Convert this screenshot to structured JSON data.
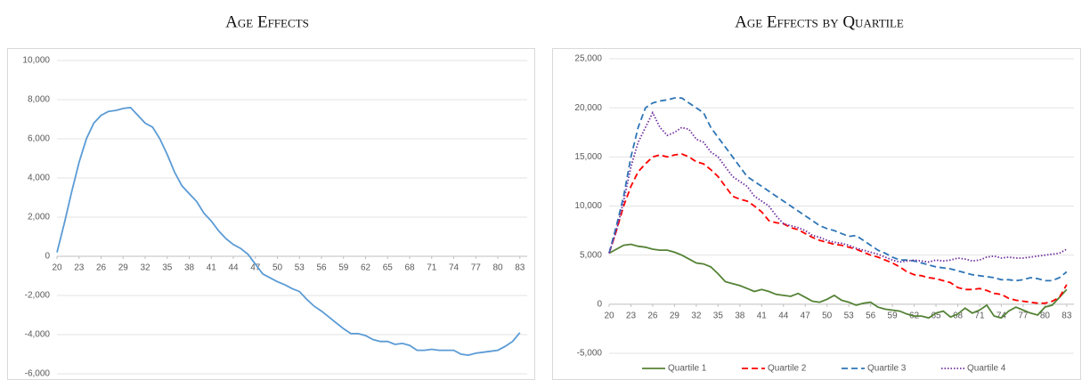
{
  "chart_data": [
    {
      "type": "line",
      "title": "Age Effects",
      "color": "#5b9bd5",
      "style": "solid",
      "x": [
        20,
        21,
        22,
        23,
        24,
        25,
        26,
        27,
        28,
        29,
        30,
        31,
        32,
        33,
        34,
        35,
        36,
        37,
        38,
        39,
        40,
        41,
        42,
        43,
        44,
        45,
        46,
        47,
        48,
        49,
        50,
        51,
        52,
        53,
        54,
        55,
        56,
        57,
        58,
        59,
        60,
        61,
        62,
        63,
        64,
        65,
        66,
        67,
        68,
        69,
        70,
        71,
        72,
        73,
        74,
        75,
        76,
        77,
        78,
        79,
        80,
        81,
        82,
        83
      ],
      "values": [
        200,
        1700,
        3300,
        4800,
        6000,
        6800,
        7200,
        7400,
        7450,
        7550,
        7600,
        7200,
        6800,
        6600,
        6000,
        5200,
        4300,
        3600,
        3200,
        2800,
        2200,
        1800,
        1300,
        900,
        600,
        400,
        100,
        -400,
        -900,
        -1100,
        -1300,
        -1450,
        -1650,
        -1800,
        -2200,
        -2550,
        -2800,
        -3100,
        -3400,
        -3700,
        -3950,
        -3950,
        -4050,
        -4250,
        -4350,
        -4350,
        -4500,
        -4450,
        -4550,
        -4800,
        -4800,
        -4750,
        -4800,
        -4800,
        -4800,
        -5000,
        -5050,
        -4950,
        -4900,
        -4850,
        -4800,
        -4600,
        -4350,
        -3900
      ],
      "xlim": [
        20,
        84
      ],
      "xticks": [
        20,
        23,
        26,
        29,
        32,
        35,
        38,
        41,
        44,
        47,
        50,
        53,
        56,
        59,
        62,
        65,
        68,
        71,
        74,
        77,
        80,
        83
      ],
      "ylim": [
        -6000,
        10000
      ],
      "yticks": [
        {
          "value": -6000,
          "label": "-6,000"
        },
        {
          "value": -4000,
          "label": "-4,000"
        },
        {
          "value": -2000,
          "label": "-2,000"
        },
        0,
        {
          "value": 2000,
          "label": "2,000"
        },
        {
          "value": 4000,
          "label": "4,000"
        },
        {
          "value": 6000,
          "label": "6,000"
        },
        {
          "value": 8000,
          "label": "8,000"
        },
        {
          "value": 10000,
          "label": "10,000"
        }
      ],
      "grid": true
    },
    {
      "type": "line",
      "title": "Age Effects by Quartile",
      "x": [
        20,
        21,
        22,
        23,
        24,
        25,
        26,
        27,
        28,
        29,
        30,
        31,
        32,
        33,
        34,
        35,
        36,
        37,
        38,
        39,
        40,
        41,
        42,
        43,
        44,
        45,
        46,
        47,
        48,
        49,
        50,
        51,
        52,
        53,
        54,
        55,
        56,
        57,
        58,
        59,
        60,
        61,
        62,
        63,
        64,
        65,
        66,
        67,
        68,
        69,
        70,
        71,
        72,
        73,
        74,
        75,
        76,
        77,
        78,
        79,
        80,
        81,
        82,
        83
      ],
      "series": [
        {
          "name": "Quartile 1",
          "color": "#548235",
          "style": "solid",
          "values": [
            5200,
            5600,
            6000,
            6100,
            5900,
            5800,
            5600,
            5500,
            5500,
            5300,
            5000,
            4600,
            4200,
            4100,
            3800,
            3100,
            2300,
            2100,
            1900,
            1600,
            1300,
            1500,
            1300,
            1000,
            900,
            800,
            1100,
            700,
            300,
            200,
            500,
            900,
            400,
            200,
            -100,
            100,
            200,
            -300,
            -500,
            -600,
            -700,
            -1000,
            -1200,
            -1200,
            -1400,
            -900,
            -700,
            -1300,
            -1000,
            -400,
            -900,
            -600,
            -100,
            -1200,
            -1400,
            -700,
            -300,
            -600,
            -900,
            -1100,
            -300,
            -100,
            700,
            1500
          ]
        },
        {
          "name": "Quartile 2",
          "color": "#ff0000",
          "style": "dashed",
          "values": [
            5200,
            7500,
            10000,
            12000,
            13500,
            14300,
            15000,
            15200,
            15000,
            15200,
            15300,
            15000,
            14500,
            14300,
            13700,
            13000,
            12000,
            11000,
            10700,
            10500,
            10000,
            9400,
            8500,
            8300,
            8200,
            7800,
            7600,
            7200,
            6800,
            6500,
            6300,
            6100,
            6000,
            5800,
            5600,
            5300,
            5000,
            4800,
            4500,
            4200,
            3800,
            3300,
            3000,
            2900,
            2700,
            2600,
            2400,
            2200,
            1700,
            1500,
            1500,
            1600,
            1400,
            1100,
            1000,
            600,
            400,
            300,
            200,
            100,
            100,
            300,
            700,
            2000
          ]
        },
        {
          "name": "Quartile 3",
          "color": "#2e75b6",
          "style": "dashed",
          "values": [
            5200,
            8000,
            11000,
            15000,
            18000,
            20000,
            20500,
            20700,
            20800,
            21000,
            21000,
            20500,
            20000,
            19500,
            18000,
            17000,
            16000,
            15000,
            14000,
            13000,
            12500,
            12000,
            11500,
            11000,
            10500,
            10000,
            9500,
            9000,
            8500,
            8000,
            7700,
            7500,
            7200,
            6900,
            7000,
            6500,
            6000,
            5500,
            5200,
            4800,
            4500,
            4500,
            4400,
            4200,
            4000,
            3800,
            3700,
            3600,
            3400,
            3200,
            3000,
            2900,
            2800,
            2700,
            2500,
            2500,
            2400,
            2500,
            2700,
            2600,
            2400,
            2400,
            2700,
            3300
          ]
        },
        {
          "name": "Quartile 4",
          "color": "#7030a0",
          "style": "dotted",
          "values": [
            5200,
            7500,
            10500,
            14000,
            16500,
            18000,
            19500,
            18000,
            17200,
            17500,
            18000,
            17800,
            16800,
            16500,
            15500,
            15000,
            14000,
            13000,
            12500,
            12000,
            11000,
            10500,
            10000,
            9000,
            8200,
            8000,
            7800,
            7500,
            7000,
            6800,
            6500,
            6300,
            6200,
            6000,
            5700,
            5500,
            5300,
            5100,
            4800,
            4500,
            4300,
            4400,
            4500,
            4400,
            4300,
            4500,
            4400,
            4500,
            4700,
            4600,
            4400,
            4500,
            4800,
            4900,
            4700,
            4800,
            4700,
            4700,
            4800,
            4900,
            5000,
            5100,
            5200,
            5600
          ]
        }
      ],
      "xlim": [
        20,
        84
      ],
      "xticks": [
        20,
        23,
        26,
        29,
        32,
        35,
        38,
        41,
        44,
        47,
        50,
        53,
        56,
        59,
        62,
        65,
        68,
        71,
        74,
        77,
        80,
        83
      ],
      "ylim": [
        -5000,
        25000
      ],
      "yticks": [
        {
          "value": -5000,
          "label": "-5,000"
        },
        0,
        {
          "value": 5000,
          "label": "5,000"
        },
        {
          "value": 10000,
          "label": "10,000"
        },
        {
          "value": 15000,
          "label": "15,000"
        },
        {
          "value": 20000,
          "label": "20,000"
        },
        {
          "value": 25000,
          "label": "25,000"
        }
      ],
      "grid": true,
      "legend": "bottom"
    }
  ]
}
